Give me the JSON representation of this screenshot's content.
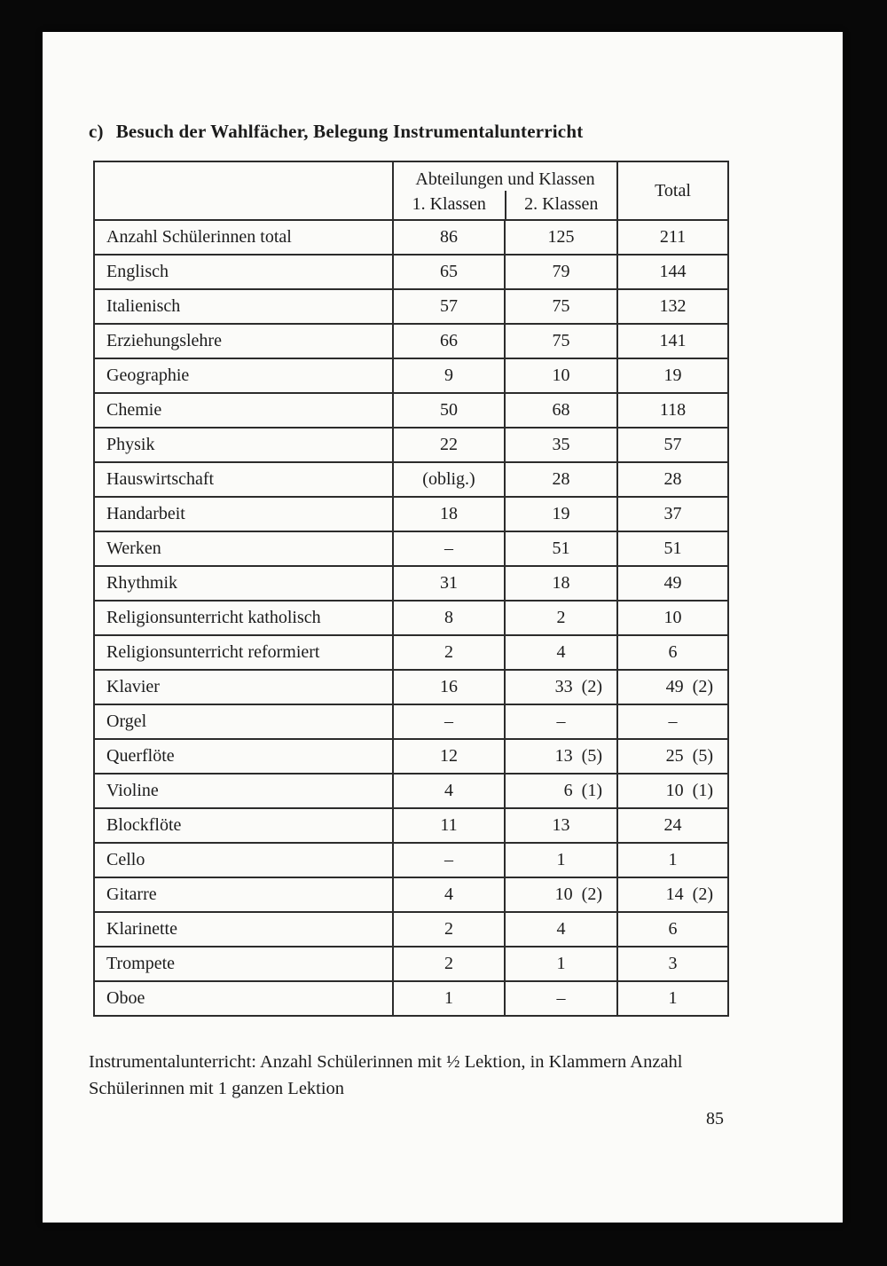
{
  "page": {
    "section_label": "c)",
    "title": "Besuch der Wahlfächer, Belegung Instrumentalunterricht",
    "footnote_line1": "Instrumentalunterricht: Anzahl Schülerinnen mit ½ Lektion, in Klammern Anzahl",
    "footnote_line2": "Schülerinnen mit 1 ganzen Lektion",
    "page_number": "85"
  },
  "table": {
    "header": {
      "group": "Abteilungen und Klassen",
      "col1": "1. Klassen",
      "col2": "2. Klassen",
      "total": "Total"
    },
    "rows": [
      {
        "label": "Anzahl Schülerinnen total",
        "k1": "86",
        "k2": "125",
        "total": "211"
      },
      {
        "label": "Englisch",
        "k1": "65",
        "k2": "79",
        "total": "144"
      },
      {
        "label": "Italienisch",
        "k1": "57",
        "k2": "75",
        "total": "132"
      },
      {
        "label": "Erziehungslehre",
        "k1": "66",
        "k2": "75",
        "total": "141"
      },
      {
        "label": "Geographie",
        "k1": "9",
        "k2": "10",
        "total": "19"
      },
      {
        "label": "Chemie",
        "k1": "50",
        "k2": "68",
        "total": "118"
      },
      {
        "label": "Physik",
        "k1": "22",
        "k2": "35",
        "total": "57"
      },
      {
        "label": "Hauswirtschaft",
        "k1": "(oblig.)",
        "k2": "28",
        "total": "28"
      },
      {
        "label": "Handarbeit",
        "k1": "18",
        "k2": "19",
        "total": "37"
      },
      {
        "label": "Werken",
        "k1": "–",
        "k2": "51",
        "total": "51"
      },
      {
        "label": "Rhythmik",
        "k1": "31",
        "k2": "18",
        "total": "49"
      },
      {
        "label": "Religionsunterricht katholisch",
        "k1": "8",
        "k2": "2",
        "total": "10"
      },
      {
        "label": "Religionsunterricht reformiert",
        "k1": "2",
        "k2": "4",
        "total": "6"
      },
      {
        "label": "Klavier",
        "k1": "16",
        "k2": "33 (2)",
        "total": "49 (2)"
      },
      {
        "label": "Orgel",
        "k1": "–",
        "k2": "–",
        "total": "–"
      },
      {
        "label": "Querflöte",
        "k1": "12",
        "k2": "13 (5)",
        "total": "25 (5)"
      },
      {
        "label": "Violine",
        "k1": "4",
        "k2": "6 (1)",
        "total": "10 (1)"
      },
      {
        "label": "Blockflöte",
        "k1": "11",
        "k2": "13",
        "total": "24"
      },
      {
        "label": "Cello",
        "k1": "–",
        "k2": "1",
        "total": "1"
      },
      {
        "label": "Gitarre",
        "k1": "4",
        "k2": "10 (2)",
        "total": "14 (2)"
      },
      {
        "label": "Klarinette",
        "k1": "2",
        "k2": "4",
        "total": "6"
      },
      {
        "label": "Trompete",
        "k1": "2",
        "k2": "1",
        "total": "3"
      },
      {
        "label": "Oboe",
        "k1": "1",
        "k2": "–",
        "total": "1"
      }
    ]
  }
}
